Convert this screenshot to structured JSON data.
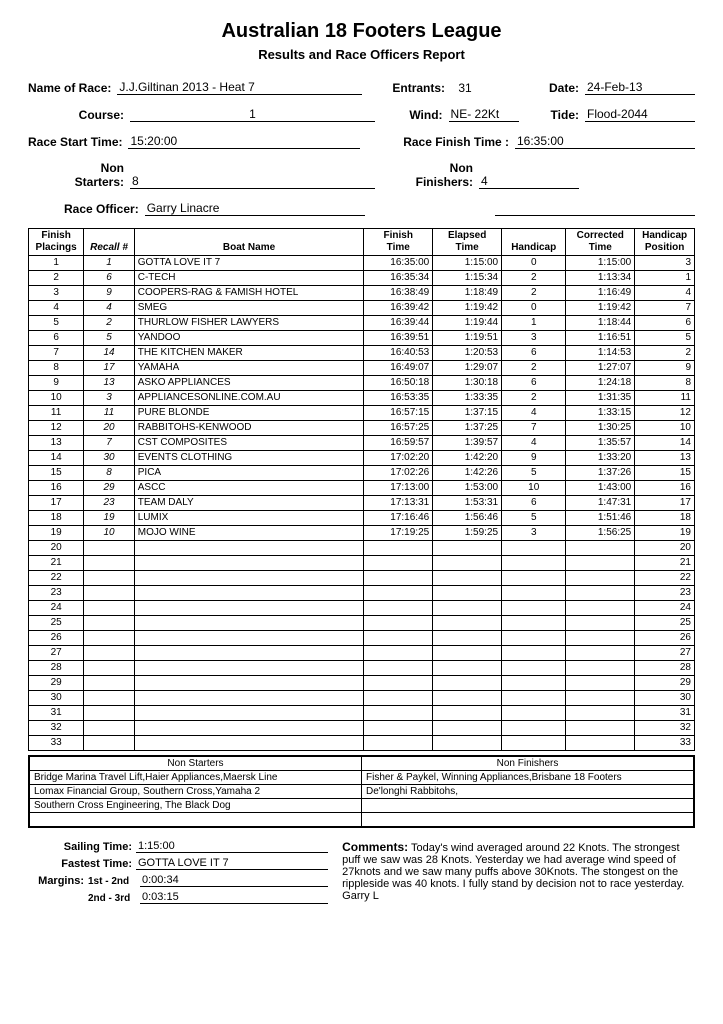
{
  "header": {
    "title": "Australian 18 Footers League",
    "subtitle": "Results and Race Officers Report"
  },
  "meta": {
    "name_of_race_label": "Name of Race:",
    "name_of_race": "J.J.Giltinan 2013 - Heat 7",
    "entrants_label": "Entrants:",
    "entrants": "31",
    "date_label": "Date:",
    "date": "24-Feb-13",
    "course_label": "Course:",
    "course": "1",
    "wind_label": "Wind:",
    "wind": "NE- 22Kt",
    "tide_label": "Tide:",
    "tide": "Flood-2044",
    "start_label": "Race Start Time:",
    "start": "15:20:00",
    "finish_label": "Race Finish Time :",
    "finish": "16:35:00",
    "non_starters_label_top": "Non",
    "non_starters_label_bot": "Starters:",
    "non_starters": "8",
    "non_finishers_label_top": "Non",
    "non_finishers_label_bot": "Finishers:",
    "non_finishers": "4",
    "officer_label": "Race Officer:",
    "officer": "Garry Linacre"
  },
  "columns": {
    "placing_top": "Finish",
    "placing_bot": "Placings",
    "recall": "Recall #",
    "boat": "Boat Name",
    "ftime_top": "Finish",
    "ftime_bot": "Time",
    "etime_top": "Elapsed",
    "etime_bot": "Time",
    "hcap": "Handicap",
    "ctime_top": "Corrected",
    "ctime_bot": "Time",
    "hpos_top": "Handicap",
    "hpos_bot": "Position"
  },
  "rows": [
    {
      "p": "1",
      "r": "1",
      "b": "GOTTA LOVE IT 7",
      "ft": "16:35:00",
      "et": "1:15:00",
      "h": "0",
      "ct": "1:15:00",
      "hp": "3"
    },
    {
      "p": "2",
      "r": "6",
      "b": "C-TECH",
      "ft": "16:35:34",
      "et": "1:15:34",
      "h": "2",
      "ct": "1:13:34",
      "hp": "1"
    },
    {
      "p": "3",
      "r": "9",
      "b": "COOPERS-RAG & FAMISH HOTEL",
      "ft": "16:38:49",
      "et": "1:18:49",
      "h": "2",
      "ct": "1:16:49",
      "hp": "4"
    },
    {
      "p": "4",
      "r": "4",
      "b": "SMEG",
      "ft": "16:39:42",
      "et": "1:19:42",
      "h": "0",
      "ct": "1:19:42",
      "hp": "7"
    },
    {
      "p": "5",
      "r": "2",
      "b": "THURLOW FISHER LAWYERS",
      "ft": "16:39:44",
      "et": "1:19:44",
      "h": "1",
      "ct": "1:18:44",
      "hp": "6"
    },
    {
      "p": "6",
      "r": "5",
      "b": "YANDOO",
      "ft": "16:39:51",
      "et": "1:19:51",
      "h": "3",
      "ct": "1:16:51",
      "hp": "5"
    },
    {
      "p": "7",
      "r": "14",
      "b": "THE KITCHEN MAKER",
      "ft": "16:40:53",
      "et": "1:20:53",
      "h": "6",
      "ct": "1:14:53",
      "hp": "2"
    },
    {
      "p": "8",
      "r": "17",
      "b": "YAMAHA",
      "ft": "16:49:07",
      "et": "1:29:07",
      "h": "2",
      "ct": "1:27:07",
      "hp": "9"
    },
    {
      "p": "9",
      "r": "13",
      "b": "ASKO APPLIANCES",
      "ft": "16:50:18",
      "et": "1:30:18",
      "h": "6",
      "ct": "1:24:18",
      "hp": "8"
    },
    {
      "p": "10",
      "r": "3",
      "b": "APPLIANCESONLINE.COM.AU",
      "ft": "16:53:35",
      "et": "1:33:35",
      "h": "2",
      "ct": "1:31:35",
      "hp": "11"
    },
    {
      "p": "11",
      "r": "11",
      "b": "PURE BLONDE",
      "ft": "16:57:15",
      "et": "1:37:15",
      "h": "4",
      "ct": "1:33:15",
      "hp": "12"
    },
    {
      "p": "12",
      "r": "20",
      "b": "RABBITOHS-KENWOOD",
      "ft": "16:57:25",
      "et": "1:37:25",
      "h": "7",
      "ct": "1:30:25",
      "hp": "10"
    },
    {
      "p": "13",
      "r": "7",
      "b": "CST COMPOSITES",
      "ft": "16:59:57",
      "et": "1:39:57",
      "h": "4",
      "ct": "1:35:57",
      "hp": "14"
    },
    {
      "p": "14",
      "r": "30",
      "b": "EVENTS CLOTHING",
      "ft": "17:02:20",
      "et": "1:42:20",
      "h": "9",
      "ct": "1:33:20",
      "hp": "13"
    },
    {
      "p": "15",
      "r": "8",
      "b": "PICA",
      "ft": "17:02:26",
      "et": "1:42:26",
      "h": "5",
      "ct": "1:37:26",
      "hp": "15"
    },
    {
      "p": "16",
      "r": "29",
      "b": "ASCC",
      "ft": "17:13:00",
      "et": "1:53:00",
      "h": "10",
      "ct": "1:43:00",
      "hp": "16"
    },
    {
      "p": "17",
      "r": "23",
      "b": "TEAM DALY",
      "ft": "17:13:31",
      "et": "1:53:31",
      "h": "6",
      "ct": "1:47:31",
      "hp": "17"
    },
    {
      "p": "18",
      "r": "19",
      "b": "LUMIX",
      "ft": "17:16:46",
      "et": "1:56:46",
      "h": "5",
      "ct": "1:51:46",
      "hp": "18"
    },
    {
      "p": "19",
      "r": "10",
      "b": "MOJO WINE",
      "ft": "17:19:25",
      "et": "1:59:25",
      "h": "3",
      "ct": "1:56:25",
      "hp": "19"
    },
    {
      "p": "20",
      "r": "",
      "b": "",
      "ft": "",
      "et": "",
      "h": "",
      "ct": "",
      "hp": "20"
    },
    {
      "p": "21",
      "r": "",
      "b": "",
      "ft": "",
      "et": "",
      "h": "",
      "ct": "",
      "hp": "21"
    },
    {
      "p": "22",
      "r": "",
      "b": "",
      "ft": "",
      "et": "",
      "h": "",
      "ct": "",
      "hp": "22"
    },
    {
      "p": "23",
      "r": "",
      "b": "",
      "ft": "",
      "et": "",
      "h": "",
      "ct": "",
      "hp": "23"
    },
    {
      "p": "24",
      "r": "",
      "b": "",
      "ft": "",
      "et": "",
      "h": "",
      "ct": "",
      "hp": "24"
    },
    {
      "p": "25",
      "r": "",
      "b": "",
      "ft": "",
      "et": "",
      "h": "",
      "ct": "",
      "hp": "25"
    },
    {
      "p": "26",
      "r": "",
      "b": "",
      "ft": "",
      "et": "",
      "h": "",
      "ct": "",
      "hp": "26"
    },
    {
      "p": "27",
      "r": "",
      "b": "",
      "ft": "",
      "et": "",
      "h": "",
      "ct": "",
      "hp": "27"
    },
    {
      "p": "28",
      "r": "",
      "b": "",
      "ft": "",
      "et": "",
      "h": "",
      "ct": "",
      "hp": "28"
    },
    {
      "p": "29",
      "r": "",
      "b": "",
      "ft": "",
      "et": "",
      "h": "",
      "ct": "",
      "hp": "29"
    },
    {
      "p": "30",
      "r": "",
      "b": "",
      "ft": "",
      "et": "",
      "h": "",
      "ct": "",
      "hp": "30"
    },
    {
      "p": "31",
      "r": "",
      "b": "",
      "ft": "",
      "et": "",
      "h": "",
      "ct": "",
      "hp": "31"
    },
    {
      "p": "32",
      "r": "",
      "b": "",
      "ft": "",
      "et": "",
      "h": "",
      "ct": "",
      "hp": "32"
    },
    {
      "p": "33",
      "r": "",
      "b": "",
      "ft": "",
      "et": "",
      "h": "",
      "ct": "",
      "hp": "33"
    }
  ],
  "non_section": {
    "ns_header": "Non Starters",
    "nf_header": "Non Finishers",
    "ns_rows": [
      "Bridge Marina Travel Lift,Haier Appliances,Maersk Line",
      "Lomax Financial Group, Southern Cross,Yamaha 2",
      "Southern Cross Engineering, The Black Dog",
      ""
    ],
    "nf_rows": [
      "Fisher & Paykel, Winning Appliances,Brisbane 18 Footers",
      "De'longhi Rabbitohs,",
      "",
      ""
    ]
  },
  "bottom": {
    "sailing_label": "Sailing Time:",
    "sailing": "1:15:00",
    "fastest_label": "Fastest Time:",
    "fastest": "GOTTA LOVE IT 7",
    "margins_label": "Margins:",
    "m1_label": "1st - 2nd",
    "m1": "0:00:34",
    "m2_label": "2nd - 3rd",
    "m2": "0:03:15",
    "comments_label": "Comments:",
    "comments": "Today's wind averaged around 22 Knots. The strongest puff we saw was 28 Knots.  Yesterday we had average wind speed of 27knots and we saw many puffs above 30Knots. The stongest on the rippleside was 40 knots. I fully stand by decision not to race yesterday. Garry L"
  }
}
